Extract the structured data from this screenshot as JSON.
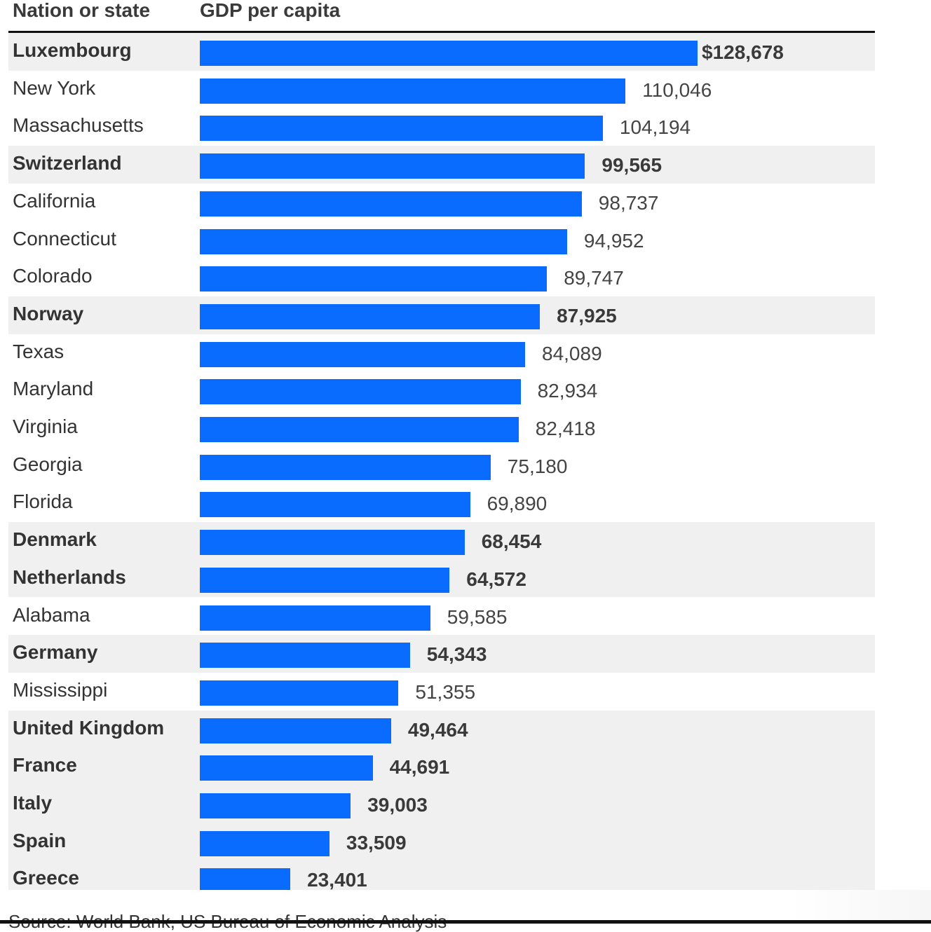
{
  "chart_data": {
    "type": "bar",
    "orientation": "horizontal",
    "column_headers": {
      "label": "Nation or state",
      "value": "GDP per capita"
    },
    "series": [
      {
        "values": [
          128678,
          110046,
          104194,
          99565,
          98737,
          94952,
          89747,
          87925,
          84089,
          82934,
          82418,
          75180,
          69890,
          68454,
          64572,
          59585,
          54343,
          51355,
          49464,
          44691,
          39003,
          33509,
          23401
        ]
      }
    ],
    "categories": [
      "Luxembourg",
      "New York",
      "Massachusetts",
      "Switzerland",
      "California",
      "Connecticut",
      "Colorado",
      "Norway",
      "Texas",
      "Maryland",
      "Virginia",
      "Georgia",
      "Florida",
      "Denmark",
      "Netherlands",
      "Alabama",
      "Germany",
      "Mississippi",
      "United Kingdom",
      "France",
      "Italy",
      "Spain",
      "Greece"
    ],
    "value_labels": [
      "$128,678",
      "110,046",
      "104,194",
      "99,565",
      "98,737",
      "94,952",
      "89,747",
      "87,925",
      "84,089",
      "82,934",
      "82,418",
      "75,180",
      "69,890",
      "68,454",
      "64,572",
      "59,585",
      "54,343",
      "51,355",
      "49,464",
      "44,691",
      "39,003",
      "33,509",
      "23,401"
    ],
    "highlighted": [
      true,
      false,
      false,
      true,
      false,
      false,
      false,
      true,
      false,
      false,
      false,
      false,
      false,
      true,
      true,
      false,
      true,
      false,
      true,
      true,
      true,
      true,
      true
    ],
    "highlight_meaning": "nations shown in bold on grey rows; US states in regular weight",
    "xlim": [
      0,
      128678
    ],
    "grid": false,
    "colors": {
      "bar": "#0a6cff",
      "highlight_row": "#f0f0f0",
      "text": "#333333"
    }
  },
  "source_note": "Source: World Bank, US Bureau of Economic Analysis"
}
